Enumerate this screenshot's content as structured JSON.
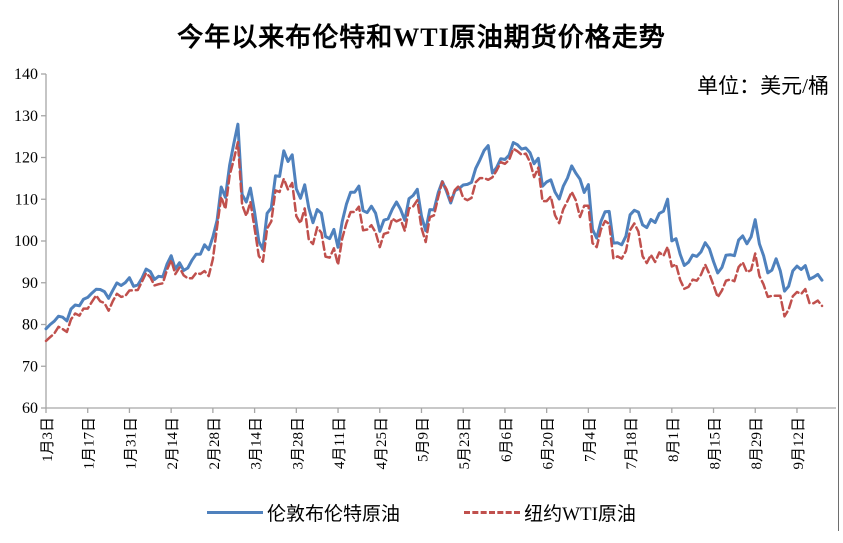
{
  "header": {
    "title": "今年以来布伦特和WTI原油期货价格走势",
    "unit_label": "单位：美元/桶"
  },
  "legend": {
    "items": [
      {
        "label": "伦敦布伦特原油",
        "color": "#4F81BD",
        "style": "solid"
      },
      {
        "label": "纽约WTI原油",
        "color": "#C0504D",
        "style": "dashed"
      }
    ],
    "position": "bottom"
  },
  "colors": {
    "brent": "#4F81BD",
    "wti": "#C0504D",
    "axis": "#a6a6a6",
    "text": "#000000",
    "background": "#ffffff"
  },
  "chart_data": {
    "type": "line",
    "title": "今年以来布伦特和WTI原油期货价格走势",
    "unit": "美元/桶",
    "xlabel": "",
    "ylabel": "",
    "ylim": [
      60,
      140
    ],
    "ytick_step": 10,
    "grid": false,
    "legend_position": "bottom",
    "x_tick_every": 10,
    "x_tick_labels": [
      "1月3日",
      "1月17日",
      "1月31日",
      "2月14日",
      "2月28日",
      "3月14日",
      "3月28日",
      "4月11日",
      "4月25日",
      "5月9日",
      "5月23日",
      "6月6日",
      "6月20日",
      "7月4日",
      "7月18日",
      "8月1日",
      "8月15日",
      "8月29日",
      "9月12日"
    ],
    "series": [
      {
        "name": "伦敦布伦特原油",
        "color": "#4F81BD",
        "style": "solid",
        "values": [
          78.98,
          80.0,
          80.8,
          81.99,
          81.75,
          80.87,
          83.72,
          84.67,
          84.47,
          86.06,
          86.48,
          87.51,
          88.44,
          88.38,
          87.89,
          86.27,
          88.2,
          89.96,
          89.34,
          90.03,
          91.21,
          89.16,
          89.47,
          91.11,
          93.27,
          92.69,
          90.78,
          91.55,
          91.41,
          94.44,
          96.48,
          93.28,
          94.81,
          92.97,
          93.54,
          95.39,
          96.84,
          96.84,
          99.08,
          97.93,
          100.99,
          104.97,
          112.93,
          110.46,
          118.11,
          123.21,
          127.98,
          111.14,
          109.33,
          112.67,
          106.9,
          99.91,
          98.02,
          106.64,
          107.93,
          115.62,
          115.48,
          121.6,
          119.03,
          120.65,
          112.48,
          110.23,
          113.45,
          107.91,
          104.39,
          107.53,
          106.64,
          101.07,
          100.58,
          102.78,
          98.48,
          104.64,
          108.78,
          111.7,
          111.7,
          113.16,
          107.25,
          106.8,
          108.33,
          106.65,
          102.32,
          104.99,
          105.32,
          107.59,
          109.34,
          107.58,
          104.97,
          110.14,
          110.9,
          112.39,
          105.94,
          102.46,
          107.51,
          107.45,
          111.55,
          114.24,
          111.93,
          109.11,
          112.04,
          112.55,
          113.42,
          113.56,
          114.03,
          117.4,
          119.43,
          121.67,
          122.84,
          116.29,
          117.61,
          119.72,
          119.51,
          120.57,
          123.58,
          123.07,
          122.01,
          122.27,
          121.17,
          118.51,
          119.81,
          113.12,
          114.13,
          114.65,
          111.74,
          110.05,
          113.12,
          115.09,
          117.98,
          116.26,
          114.81,
          111.63,
          113.5,
          102.77,
          100.69,
          104.65,
          107.02,
          107.1,
          99.49,
          99.57,
          99.1,
          101.16,
          106.27,
          107.35,
          106.92,
          103.86,
          103.2,
          105.15,
          104.4,
          106.62,
          107.14,
          110.01,
          100.03,
          100.54,
          96.78,
          94.12,
          94.92,
          96.65,
          96.31,
          97.4,
          99.6,
          98.15,
          95.1,
          92.34,
          93.65,
          96.59,
          96.72,
          96.48,
          100.22,
          101.22,
          99.34,
          100.99,
          105.09,
          99.31,
          96.49,
          92.36,
          93.02,
          95.74,
          92.83,
          88.0,
          89.15,
          92.84,
          94.0,
          93.17,
          94.1,
          90.84,
          91.35,
          92.0,
          90.62
        ]
      },
      {
        "name": "纽约WTI原油",
        "color": "#C0504D",
        "style": "dashed",
        "values": [
          76.08,
          76.99,
          77.85,
          79.46,
          78.9,
          78.23,
          81.22,
          82.64,
          82.12,
          83.82,
          83.82,
          85.43,
          86.96,
          85.55,
          85.14,
          83.31,
          85.6,
          87.35,
          86.61,
          86.82,
          88.15,
          88.2,
          88.26,
          90.27,
          92.31,
          91.32,
          89.36,
          89.66,
          89.88,
          93.1,
          95.46,
          92.07,
          93.66,
          91.76,
          91.07,
          91.07,
          92.35,
          92.1,
          92.81,
          91.59,
          95.72,
          103.41,
          110.6,
          107.67,
          115.68,
          119.4,
          123.7,
          108.7,
          106.02,
          109.33,
          103.01,
          96.44,
          95.04,
          102.98,
          104.7,
          112.12,
          111.76,
          114.93,
          112.34,
          113.9,
          105.96,
          104.24,
          107.82,
          100.28,
          99.27,
          103.28,
          101.96,
          96.23,
          96.03,
          98.26,
          94.29,
          100.6,
          104.25,
          106.95,
          106.95,
          108.21,
          102.56,
          102.75,
          103.79,
          102.07,
          98.54,
          101.7,
          102.02,
          105.36,
          104.69,
          105.17,
          102.41,
          107.81,
          108.26,
          109.77,
          103.09,
          99.76,
          105.71,
          106.13,
          110.49,
          114.2,
          112.4,
          109.59,
          112.21,
          113.23,
          110.29,
          109.77,
          110.33,
          114.09,
          115.07,
          115.07,
          114.67,
          115.26,
          116.87,
          118.87,
          118.5,
          119.41,
          122.11,
          121.51,
          120.67,
          120.93,
          118.93,
          115.31,
          117.58,
          109.56,
          109.56,
          110.65,
          106.19,
          104.27,
          107.62,
          109.57,
          111.76,
          109.78,
          105.76,
          108.43,
          108.43,
          99.5,
          98.53,
          102.73,
          104.79,
          104.09,
          95.84,
          96.3,
          95.78,
          97.59,
          102.6,
          104.22,
          102.26,
          96.35,
          94.7,
          96.7,
          94.98,
          97.26,
          96.42,
          98.62,
          93.89,
          94.42,
          90.66,
          88.54,
          89.01,
          90.76,
          90.5,
          91.93,
          94.34,
          92.09,
          89.41,
          86.53,
          88.11,
          90.5,
          90.77,
          90.36,
          93.74,
          94.89,
          92.52,
          93.06,
          97.01,
          91.64,
          89.55,
          86.61,
          86.87,
          86.87,
          86.88,
          81.94,
          83.54,
          86.79,
          87.78,
          87.31,
          88.48,
          85.1,
          85.11,
          85.73,
          84.45
        ]
      }
    ]
  }
}
